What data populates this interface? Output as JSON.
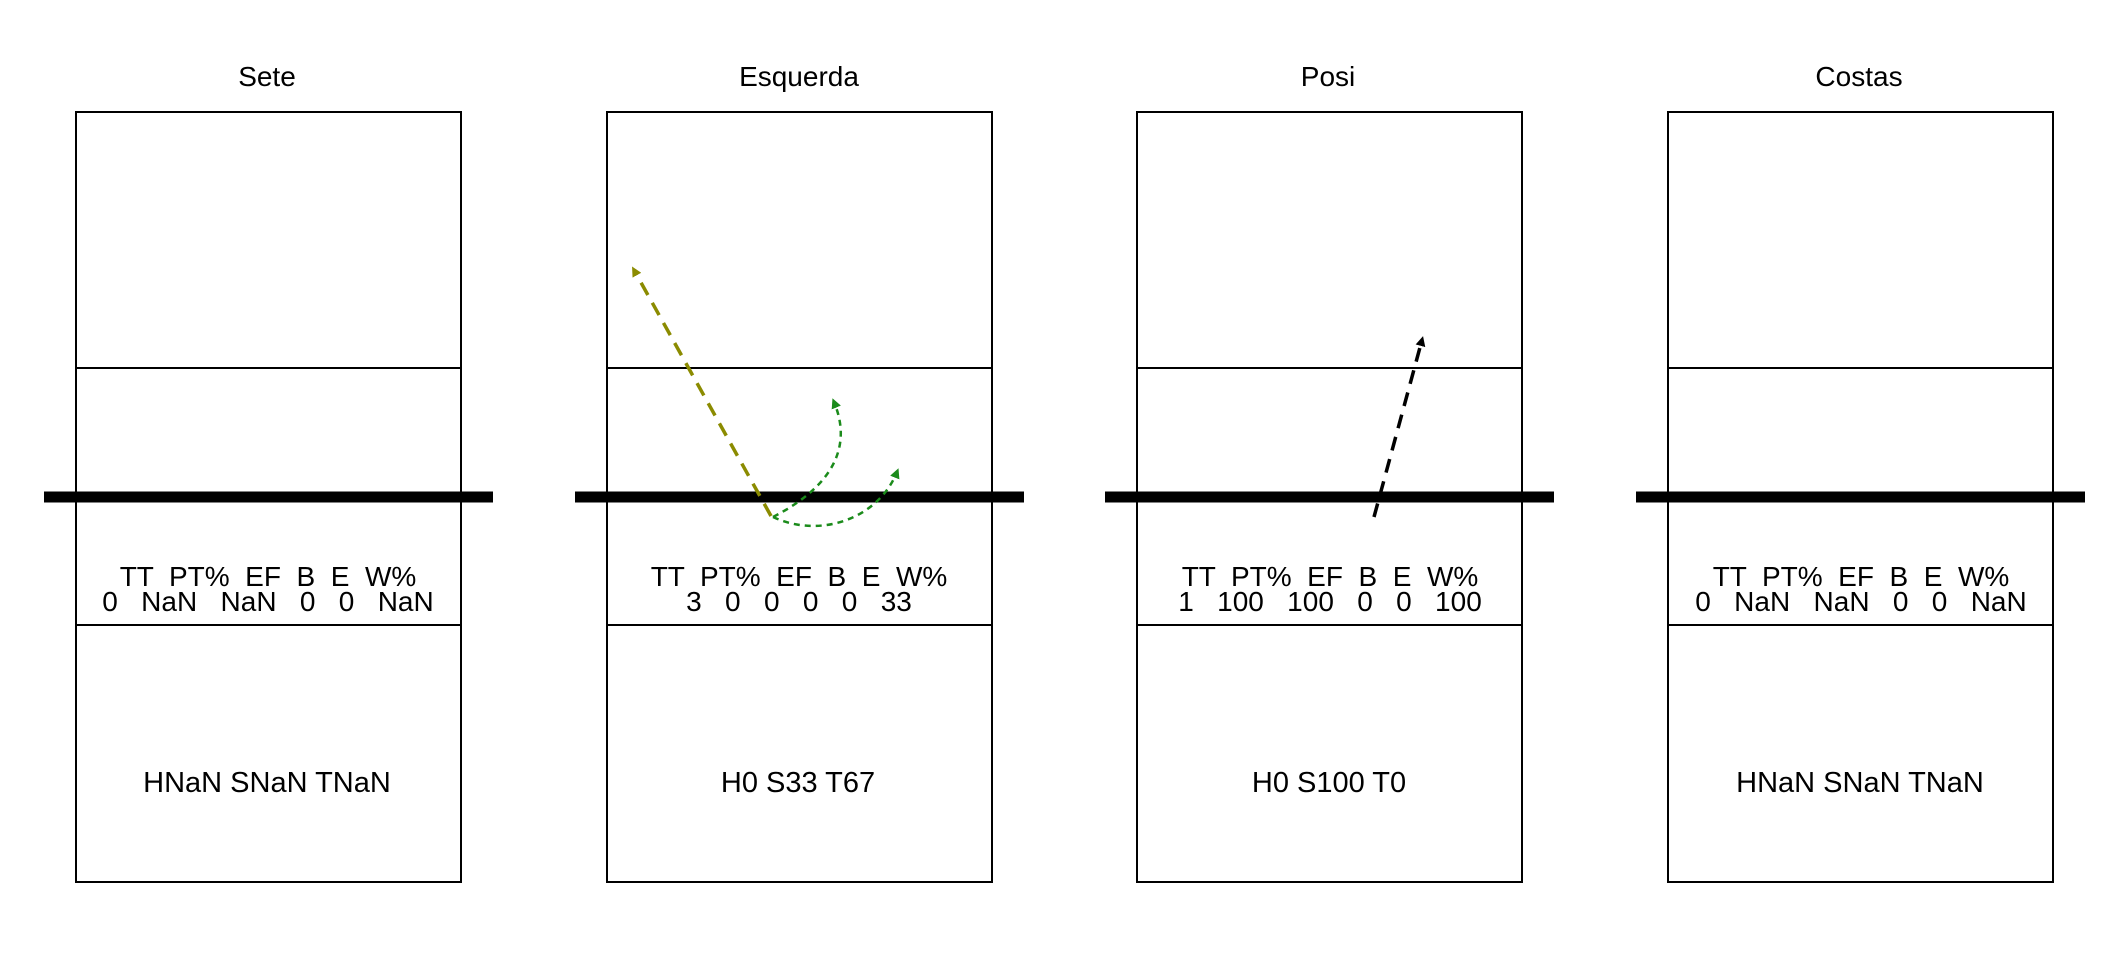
{
  "panels": [
    {
      "title": "Sete",
      "stats_header": "TT  PT%  EF  B  E  W%",
      "stats_values": "0   NaN   NaN   0   0   NaN",
      "zones": "HNaN SNaN TNaN",
      "attacks": []
    },
    {
      "title": "Esquerda",
      "stats_header": "TT  PT%  EF  B  E  W%",
      "stats_values": "3   0   0   0   0   33",
      "zones": "H0 S33 T67",
      "attacks": [
        {
          "kind": "straight",
          "color": "#8b8b00",
          "from": "net-center-left",
          "to": "far-back-left"
        },
        {
          "kind": "curved",
          "color": "#1b8b1b",
          "from": "net-center-left",
          "to": "attack-zone-center"
        },
        {
          "kind": "curved",
          "color": "#1b8b1b",
          "from": "net-center-left",
          "to": "net-right"
        }
      ]
    },
    {
      "title": "Posi",
      "stats_header": "TT  PT%  EF  B  E  W%",
      "stats_values": "1   100   100   0   0   100",
      "zones": "H0 S100 T0",
      "attacks": [
        {
          "kind": "straight",
          "color": "#000000",
          "from": "net-center-right",
          "to": "mid-court-right"
        }
      ]
    },
    {
      "title": "Costas",
      "stats_header": "TT  PT%  EF  B  E  W%",
      "stats_values": "0   NaN   NaN   0   0   NaN",
      "zones": "HNaN SNaN TNaN",
      "attacks": []
    }
  ]
}
